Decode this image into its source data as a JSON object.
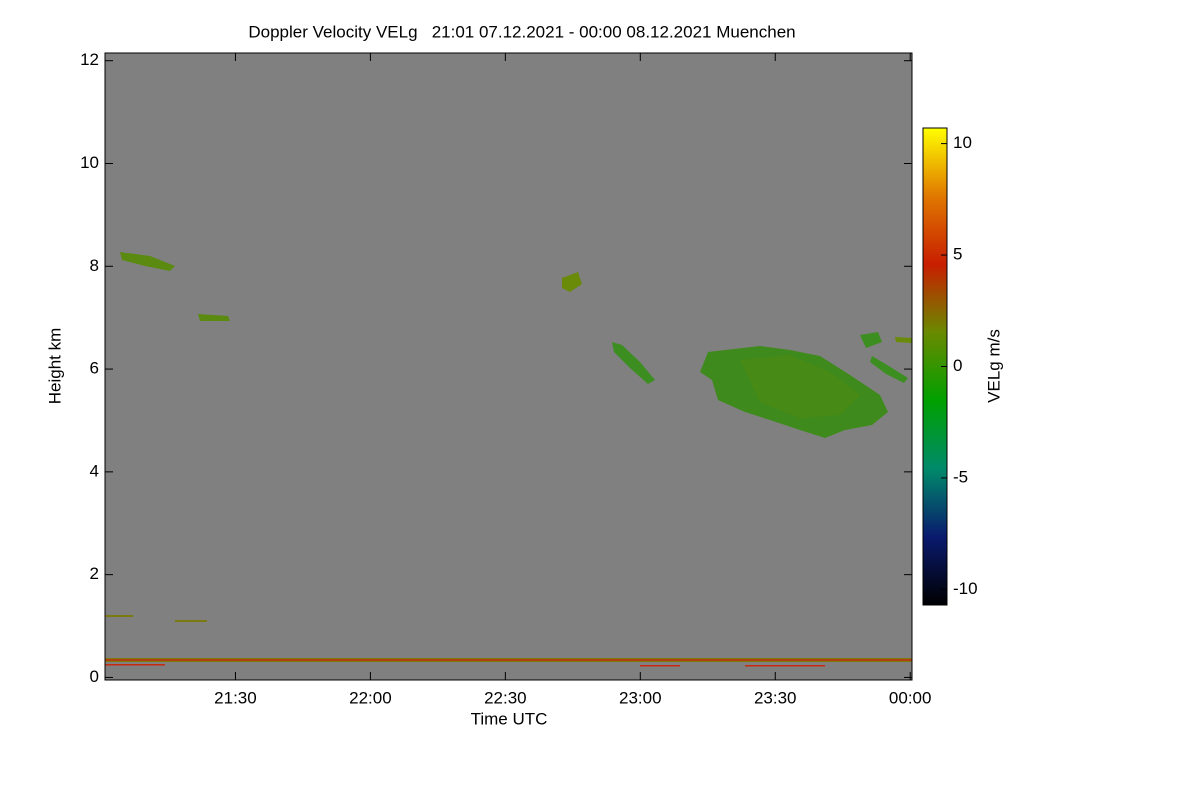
{
  "chart_data": {
    "type": "heatmap",
    "title": "Doppler Velocity VELg   21:01 07.12.2021 - 00:00 08.12.2021 Muenchen",
    "x_label": "Time UTC",
    "y_label": "Height km",
    "colorbar_label": "VELg m/s",
    "xlim": [
      1,
      180.4
    ],
    "xticks": [
      {
        "value": 30,
        "label": "21:30"
      },
      {
        "value": 60,
        "label": "22:00"
      },
      {
        "value": 90,
        "label": "22:30"
      },
      {
        "value": 120,
        "label": "23:00"
      },
      {
        "value": 150,
        "label": "23:30"
      },
      {
        "value": 180,
        "label": "00:00"
      }
    ],
    "ylim": [
      -0.05,
      12.15
    ],
    "yticks": [
      0,
      2,
      4,
      6,
      8,
      10,
      12
    ],
    "clim": [
      -10.7,
      10.7
    ],
    "cticks": [
      -10,
      -5,
      0,
      5,
      10
    ],
    "colormap": [
      "#000000",
      "#0a1a6e",
      "#008a6a",
      "#00a000",
      "#6a8a00",
      "#c81e00",
      "#e07800",
      "#ffff00"
    ],
    "background": "#808080"
  }
}
